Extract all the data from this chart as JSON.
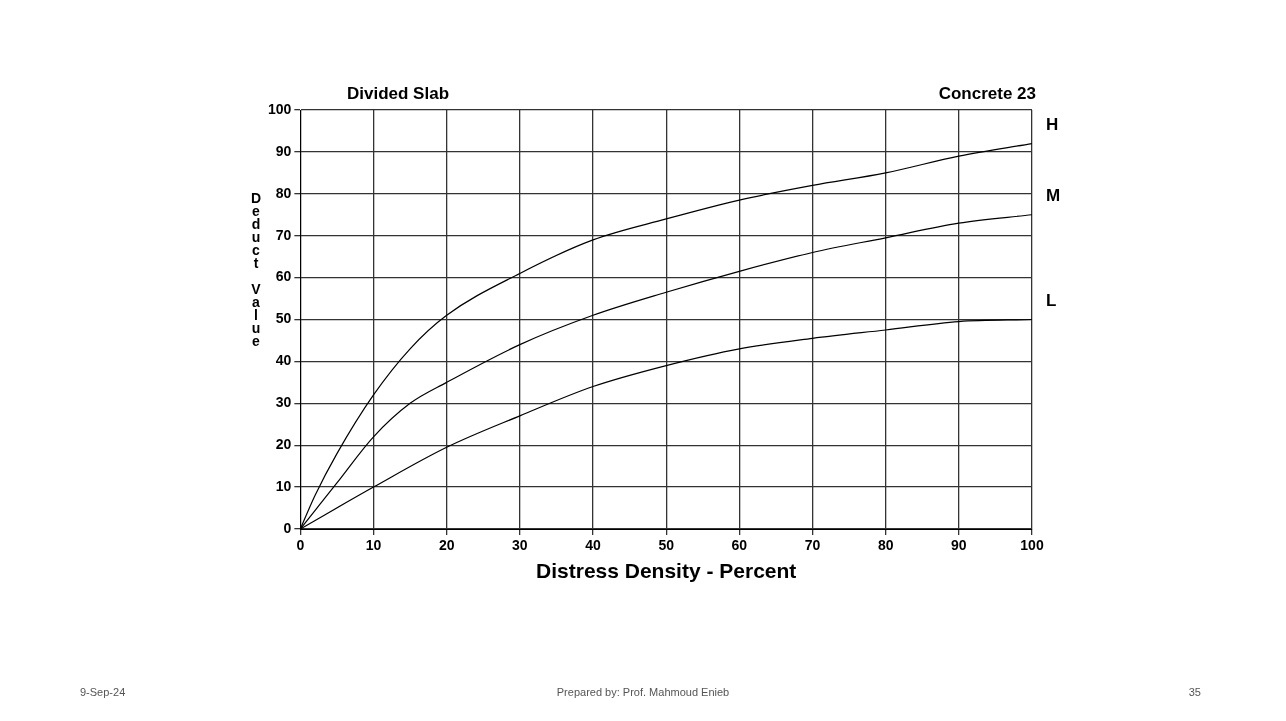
{
  "chart_data": {
    "type": "line",
    "title": "Divided Slab",
    "subtitle": "Concrete 23",
    "xlabel": "Distress Density - Percent",
    "ylabel": "Deduct Value",
    "series": [
      {
        "name": "H",
        "color": "#000000",
        "x": [
          0,
          2,
          5,
          10,
          15,
          20,
          30,
          40,
          50,
          60,
          70,
          80,
          90,
          100
        ],
        "values": [
          0,
          8,
          18,
          32,
          43,
          51,
          61,
          69,
          74,
          78.5,
          82,
          85,
          89,
          92
        ]
      },
      {
        "name": "M",
        "color": "#000000",
        "x": [
          0,
          5,
          10,
          15,
          20,
          30,
          40,
          50,
          60,
          70,
          80,
          90,
          100
        ],
        "values": [
          0,
          11,
          22,
          30,
          35,
          44,
          51,
          56.5,
          61.5,
          66,
          69.5,
          73,
          75
        ]
      },
      {
        "name": "L",
        "color": "#000000",
        "x": [
          0,
          10,
          20,
          30,
          40,
          50,
          60,
          70,
          80,
          90,
          100
        ],
        "values": [
          0,
          10,
          19.5,
          27,
          34,
          39,
          43,
          45.5,
          47.5,
          49.5,
          50
        ]
      }
    ],
    "xlim": [
      0,
      100
    ],
    "xticks": [
      0,
      10,
      20,
      30,
      40,
      50,
      60,
      70,
      80,
      90,
      100
    ],
    "ylim": [
      0,
      100
    ],
    "yticks": [
      0,
      10,
      20,
      30,
      40,
      50,
      60,
      70,
      80,
      90,
      100
    ],
    "grid": true,
    "legend": false,
    "marker": "none",
    "line_style": "solid",
    "annotations": [
      "9-Sep-24",
      "Prepared by: Prof. Mahmoud Enieb",
      "35"
    ]
  }
}
